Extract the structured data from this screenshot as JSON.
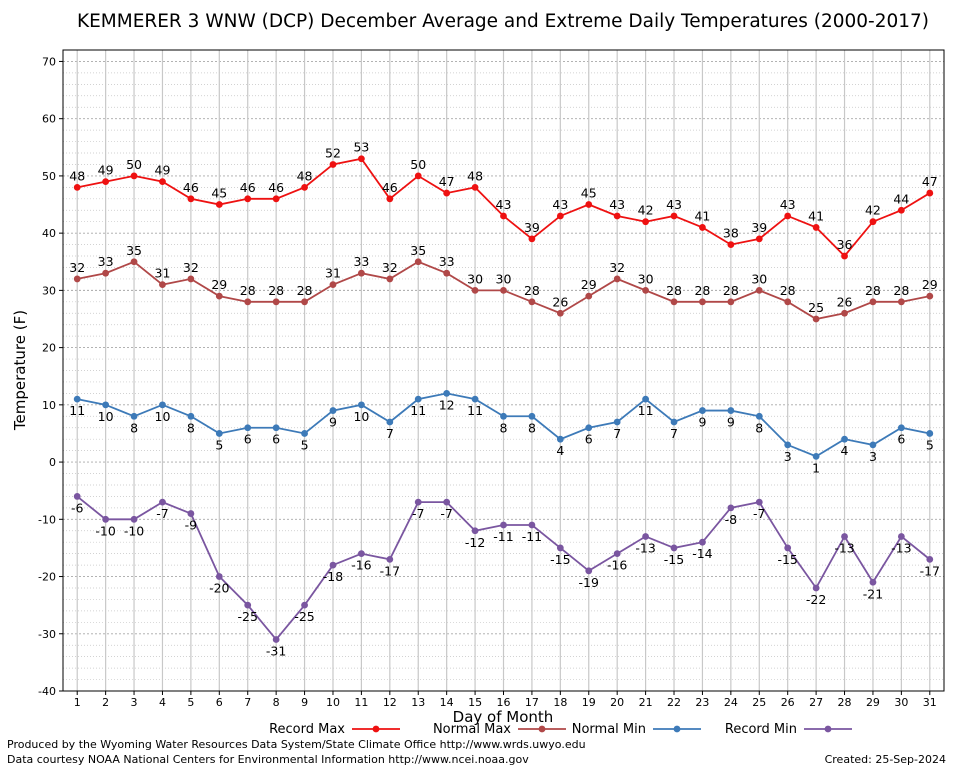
{
  "chart_data": {
    "type": "line",
    "title": "KEMMERER 3 WNW (DCP) December Average and Extreme Daily Temperatures (2000-2017)",
    "xlabel": "Day of Month",
    "ylabel": "Temperature (F)",
    "ylim": [
      -40,
      72
    ],
    "yticks": [
      -40,
      -30,
      -20,
      -10,
      0,
      10,
      20,
      30,
      40,
      50,
      60,
      70
    ],
    "x": [
      1,
      2,
      3,
      4,
      5,
      6,
      7,
      8,
      9,
      10,
      11,
      12,
      13,
      14,
      15,
      16,
      17,
      18,
      19,
      20,
      21,
      22,
      23,
      24,
      25,
      26,
      27,
      28,
      29,
      30,
      31
    ],
    "grid": true,
    "legend_position": "bottom",
    "series": [
      {
        "name": "Record Max",
        "color": "#ee1111",
        "label_position": "above",
        "values": [
          48,
          49,
          50,
          49,
          46,
          45,
          46,
          46,
          48,
          52,
          53,
          46,
          50,
          47,
          48,
          43,
          39,
          43,
          45,
          43,
          42,
          43,
          41,
          38,
          39,
          43,
          41,
          36,
          42,
          44,
          47
        ]
      },
      {
        "name": "Normal Max",
        "color": "#b04848",
        "label_position": "above",
        "values": [
          32,
          33,
          35,
          31,
          32,
          29,
          28,
          28,
          28,
          31,
          33,
          32,
          35,
          33,
          30,
          30,
          28,
          26,
          29,
          32,
          30,
          28,
          28,
          28,
          30,
          28,
          25,
          26,
          28,
          28,
          29
        ]
      },
      {
        "name": "Normal Min",
        "color": "#3d7ab8",
        "label_position": "below",
        "values": [
          11,
          10,
          8,
          10,
          8,
          5,
          6,
          6,
          5,
          9,
          10,
          7,
          11,
          12,
          11,
          8,
          8,
          4,
          6,
          7,
          11,
          7,
          9,
          9,
          8,
          3,
          1,
          4,
          3,
          6,
          5
        ]
      },
      {
        "name": "Record Min",
        "color": "#7a56a0",
        "label_position": "below",
        "values": [
          -6,
          -10,
          -10,
          -7,
          -9,
          -20,
          -25,
          -31,
          -25,
          -18,
          -16,
          -17,
          -7,
          -7,
          -12,
          -11,
          -11,
          -15,
          -19,
          -16,
          -13,
          -15,
          -14,
          -8,
          -7,
          -15,
          -22,
          -13,
          -21,
          -13,
          -17
        ]
      }
    ]
  },
  "footer": {
    "producer": "Produced by the Wyoming Water Resources Data System/State Climate Office http://www.wrds.uwyo.edu",
    "courtesy": "Data courtesy NOAA National Centers for Environmental Information http://www.ncei.noaa.gov",
    "created": "Created: 25-Sep-2024"
  }
}
